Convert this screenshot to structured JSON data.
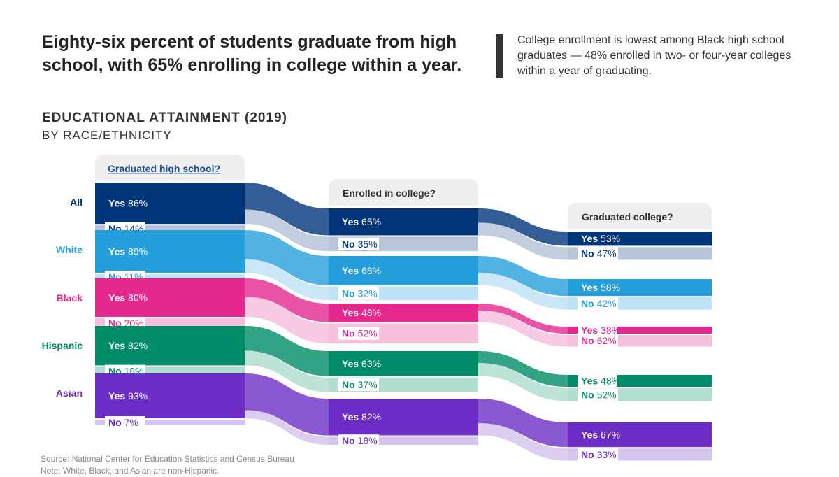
{
  "headline": "Eighty-six percent of students graduate from high school, with 65% enrolling in college within a year.",
  "callout": "College enrollment is lowest among Black high school graduates — 48% enrolled in two- or four-year colleges within a year of graduating.",
  "source": "Source: National Center for Education Statistics and Census Bureau",
  "note": "Note: White, Black, and Asian are non-Hispanic.",
  "chart_data": {
    "type": "sankey",
    "title": "EDUCATIONAL ATTAINMENT (2019)",
    "subtitle": "BY RACE/ETHNICITY",
    "stages": [
      "Graduated high school?",
      "Enrolled in college?",
      "Graduated college?"
    ],
    "yes_label": "Yes",
    "no_label": "No",
    "groups": [
      {
        "name": "All",
        "color": "#003479",
        "light": "#b7c4d9",
        "stage_yes_pct": [
          86,
          65,
          53
        ]
      },
      {
        "name": "White",
        "color": "#259fdc",
        "light": "#bfe3f6",
        "stage_yes_pct": [
          89,
          68,
          58
        ]
      },
      {
        "name": "Black",
        "color": "#e4288e",
        "light": "#f7c0dd",
        "stage_yes_pct": [
          80,
          48,
          38
        ]
      },
      {
        "name": "Hispanic",
        "color": "#008c68",
        "light": "#b2ddd1",
        "stage_yes_pct": [
          82,
          63,
          48
        ]
      },
      {
        "name": "Asian",
        "color": "#6c2dc7",
        "light": "#d6c5ef",
        "stage_yes_pct": [
          93,
          82,
          67
        ]
      }
    ]
  }
}
